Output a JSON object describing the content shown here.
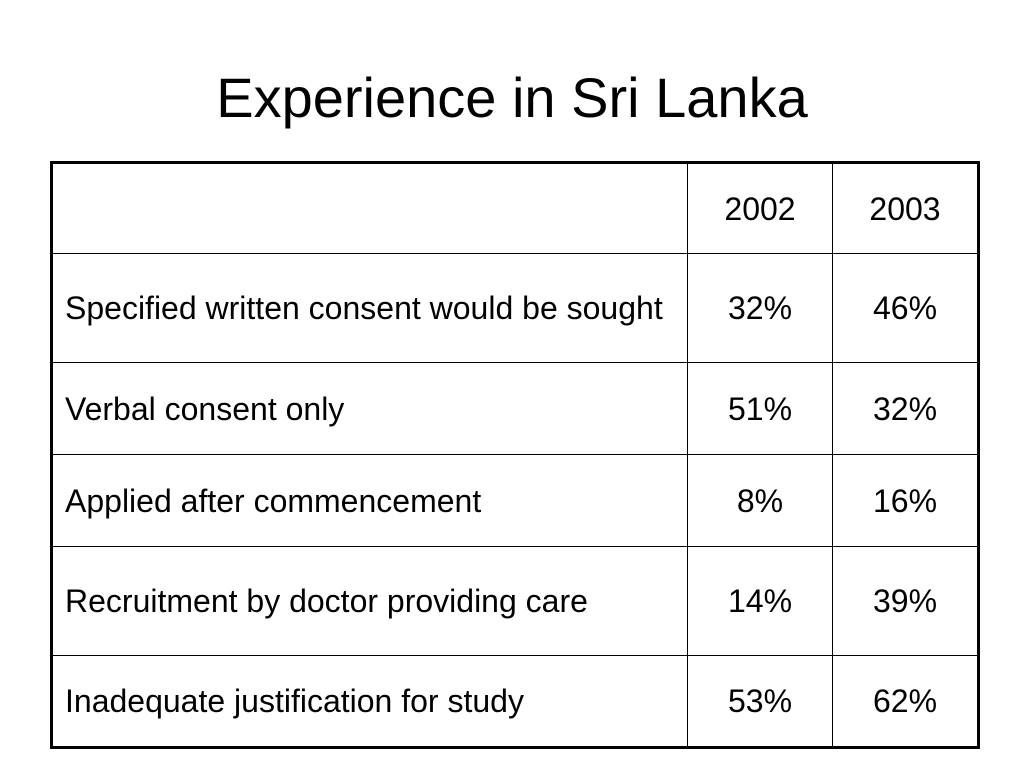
{
  "title": "Experience in Sri Lanka",
  "table": {
    "corner": "",
    "columns": [
      "2002",
      "2003"
    ],
    "rows": [
      {
        "label": "Specified written consent would be sought",
        "values": [
          "32%",
          "46%"
        ]
      },
      {
        "label": "Verbal consent only",
        "values": [
          "51%",
          "32%"
        ]
      },
      {
        "label": "Applied after commencement",
        "values": [
          "8%",
          "16%"
        ]
      },
      {
        "label": "Recruitment by doctor providing care",
        "values": [
          "14%",
          "39%"
        ]
      },
      {
        "label": "Inadequate justification for study",
        "values": [
          "53%",
          "62%"
        ]
      }
    ]
  }
}
